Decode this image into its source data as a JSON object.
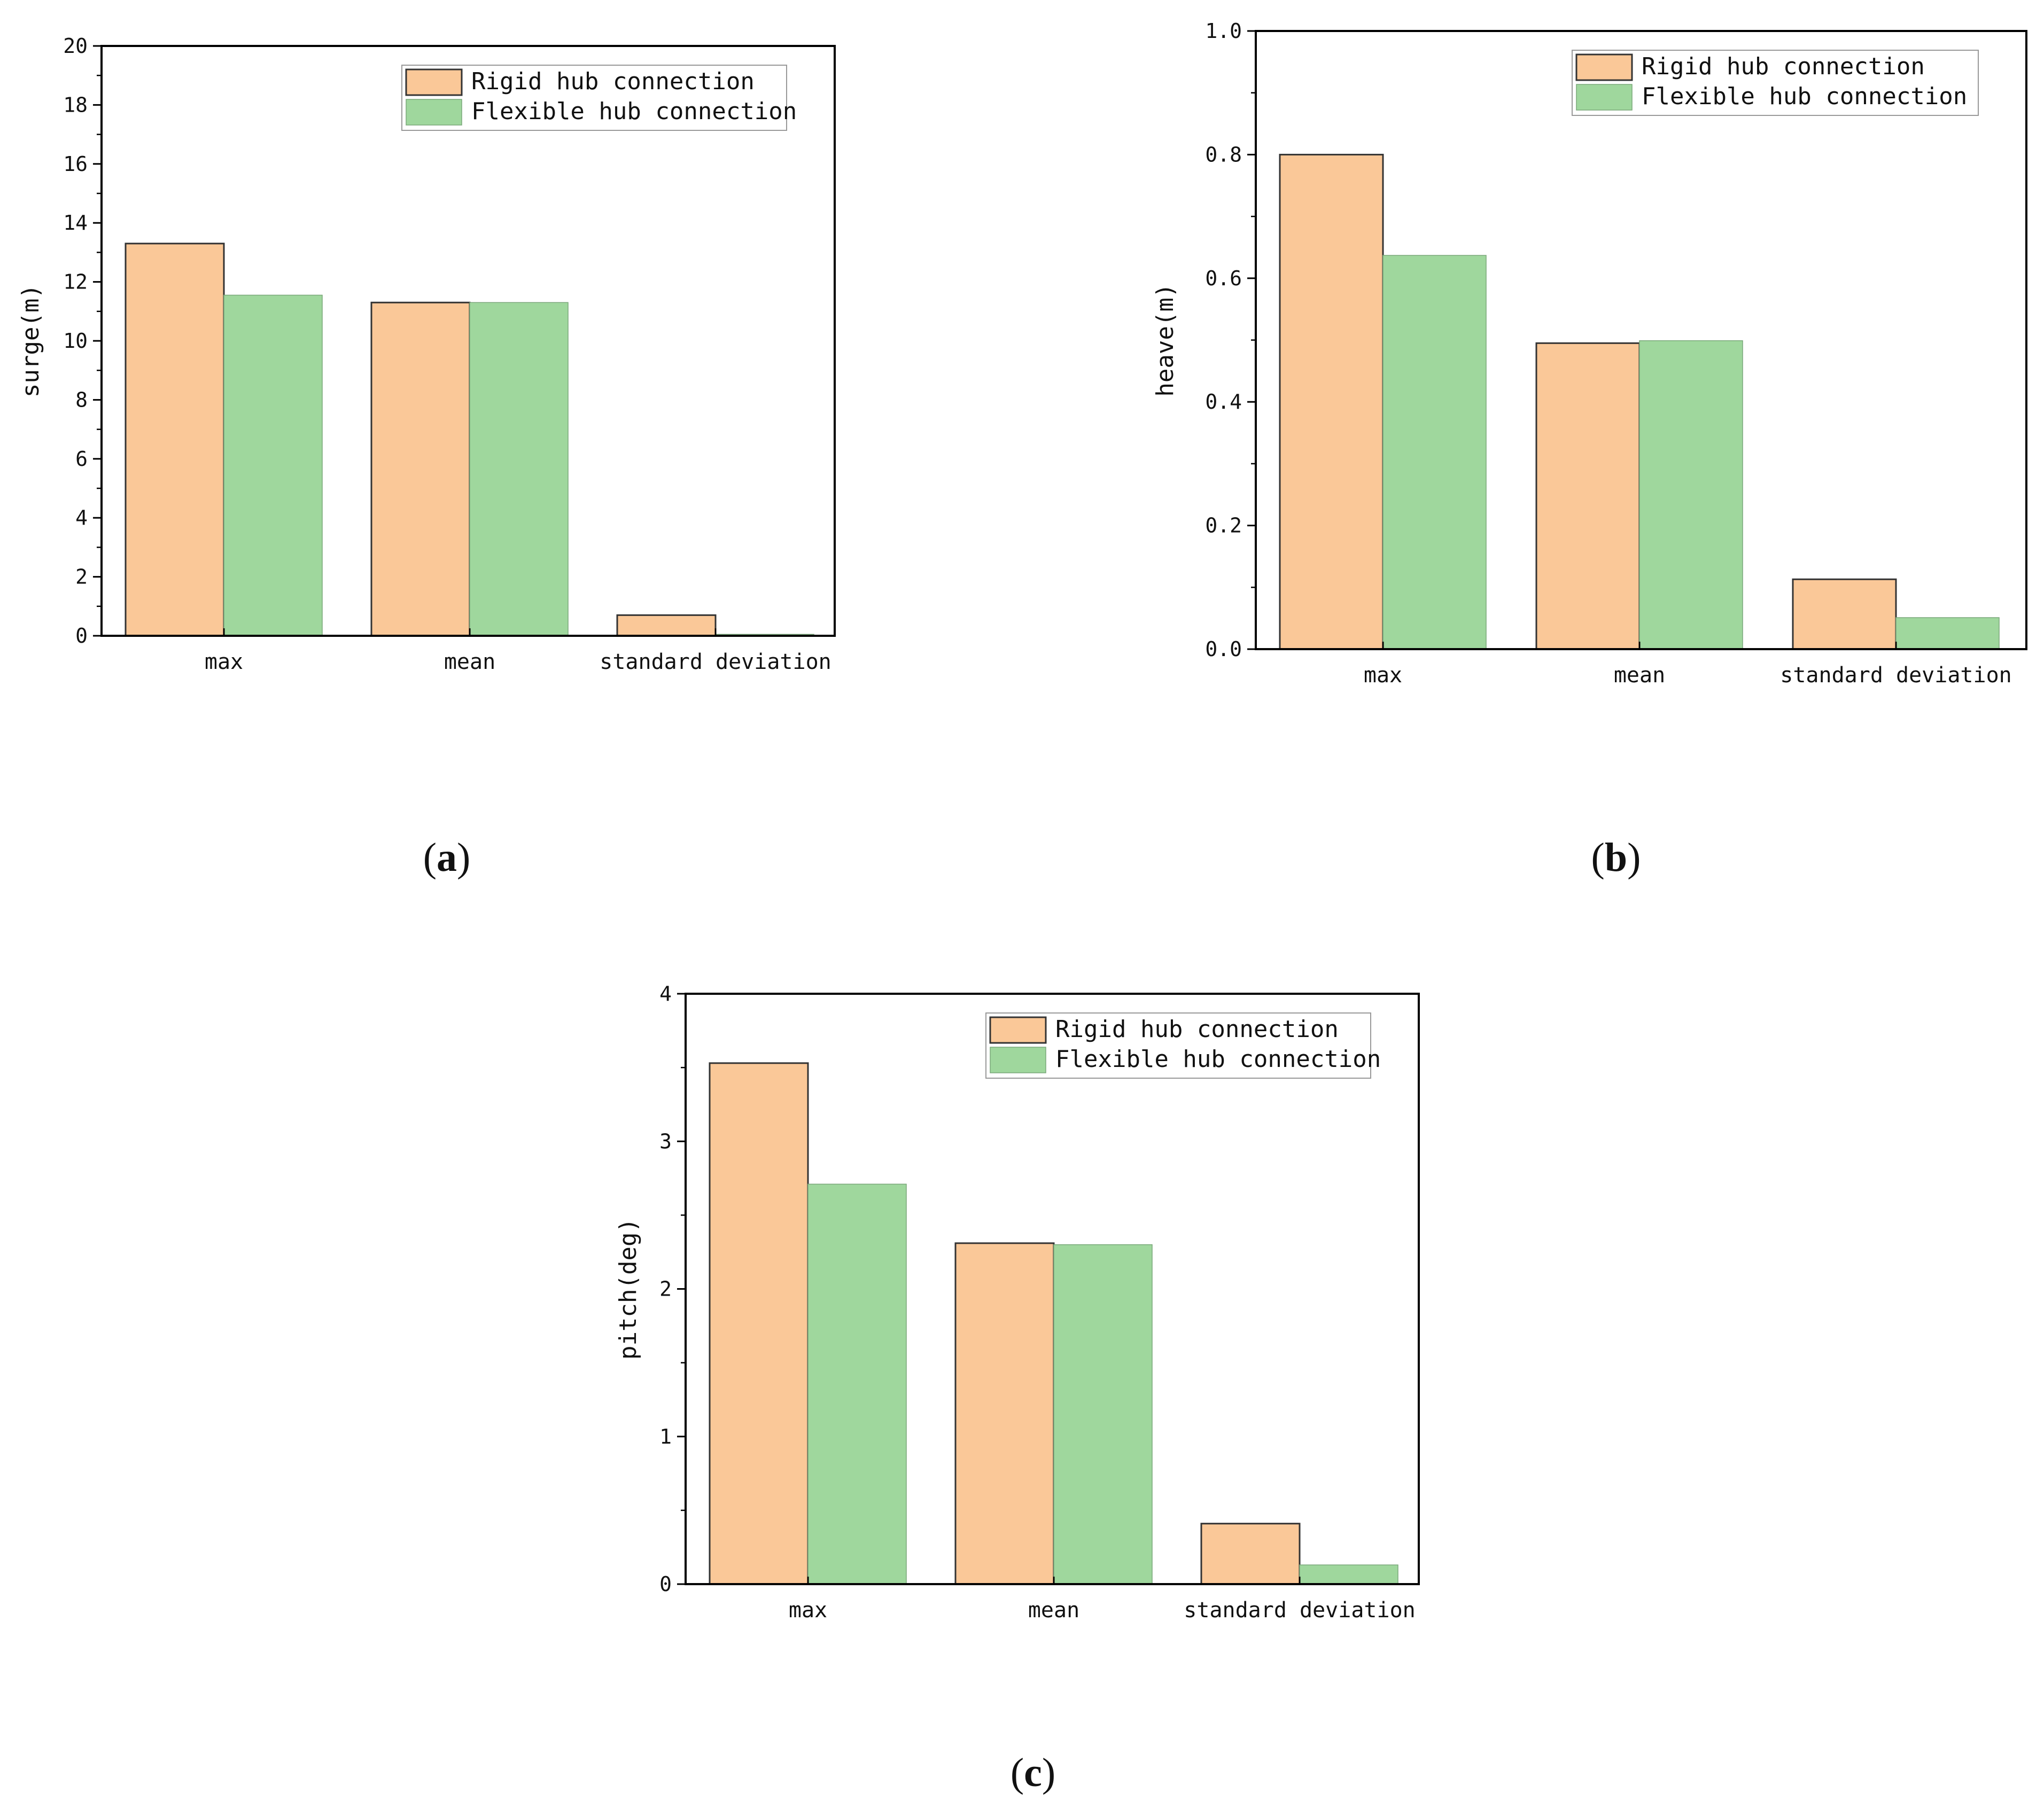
{
  "colors": {
    "rigid": "#FAC898",
    "flexible": "#9FD79D",
    "axis": "#000000",
    "bar_edge": "#333333"
  },
  "chart_data": [
    {
      "id": "a",
      "type": "bar",
      "panel_label": "a",
      "categories": [
        "max",
        "mean",
        "standard deviation"
      ],
      "series": [
        {
          "name": "Rigid hub connection",
          "values": [
            13.3,
            11.3,
            0.7
          ]
        },
        {
          "name": "Flexible hub connection",
          "values": [
            11.55,
            11.3,
            0.05
          ]
        }
      ],
      "ylabel": "surge(m)",
      "xlabel": "",
      "ylim": [
        0,
        20
      ],
      "yticks": [
        0,
        2,
        4,
        6,
        8,
        10,
        12,
        14,
        16,
        18,
        20
      ],
      "tick_labels": [
        "0",
        "2",
        "4",
        "6",
        "8",
        "10",
        "12",
        "14",
        "16",
        "18",
        "20"
      ],
      "legend": "top-right"
    },
    {
      "id": "b",
      "type": "bar",
      "panel_label": "b",
      "categories": [
        "max",
        "mean",
        "standard deviation"
      ],
      "series": [
        {
          "name": "Rigid hub connection",
          "values": [
            0.8,
            0.495,
            0.113
          ]
        },
        {
          "name": "Flexible hub connection",
          "values": [
            0.637,
            0.499,
            0.051
          ]
        }
      ],
      "ylabel": "heave(m)",
      "xlabel": "",
      "ylim": [
        0,
        1.0
      ],
      "yticks": [
        0,
        0.2,
        0.4,
        0.6,
        0.8,
        1.0
      ],
      "tick_labels": [
        "0.0",
        "0.2",
        "0.4",
        "0.6",
        "0.8",
        "1.0"
      ],
      "legend": "top-right"
    },
    {
      "id": "c",
      "type": "bar",
      "panel_label": "c",
      "categories": [
        "max",
        "mean",
        "standard deviation"
      ],
      "series": [
        {
          "name": "Rigid hub connection",
          "values": [
            3.53,
            2.31,
            0.41
          ]
        },
        {
          "name": "Flexible hub connection",
          "values": [
            2.71,
            2.3,
            0.13
          ]
        }
      ],
      "ylabel": "pitch(deg)",
      "xlabel": "",
      "ylim": [
        0,
        4
      ],
      "yticks": [
        0,
        1,
        2,
        3,
        4
      ],
      "tick_labels": [
        "0",
        "1",
        "2",
        "3",
        "4"
      ],
      "legend": "top-right"
    }
  ]
}
